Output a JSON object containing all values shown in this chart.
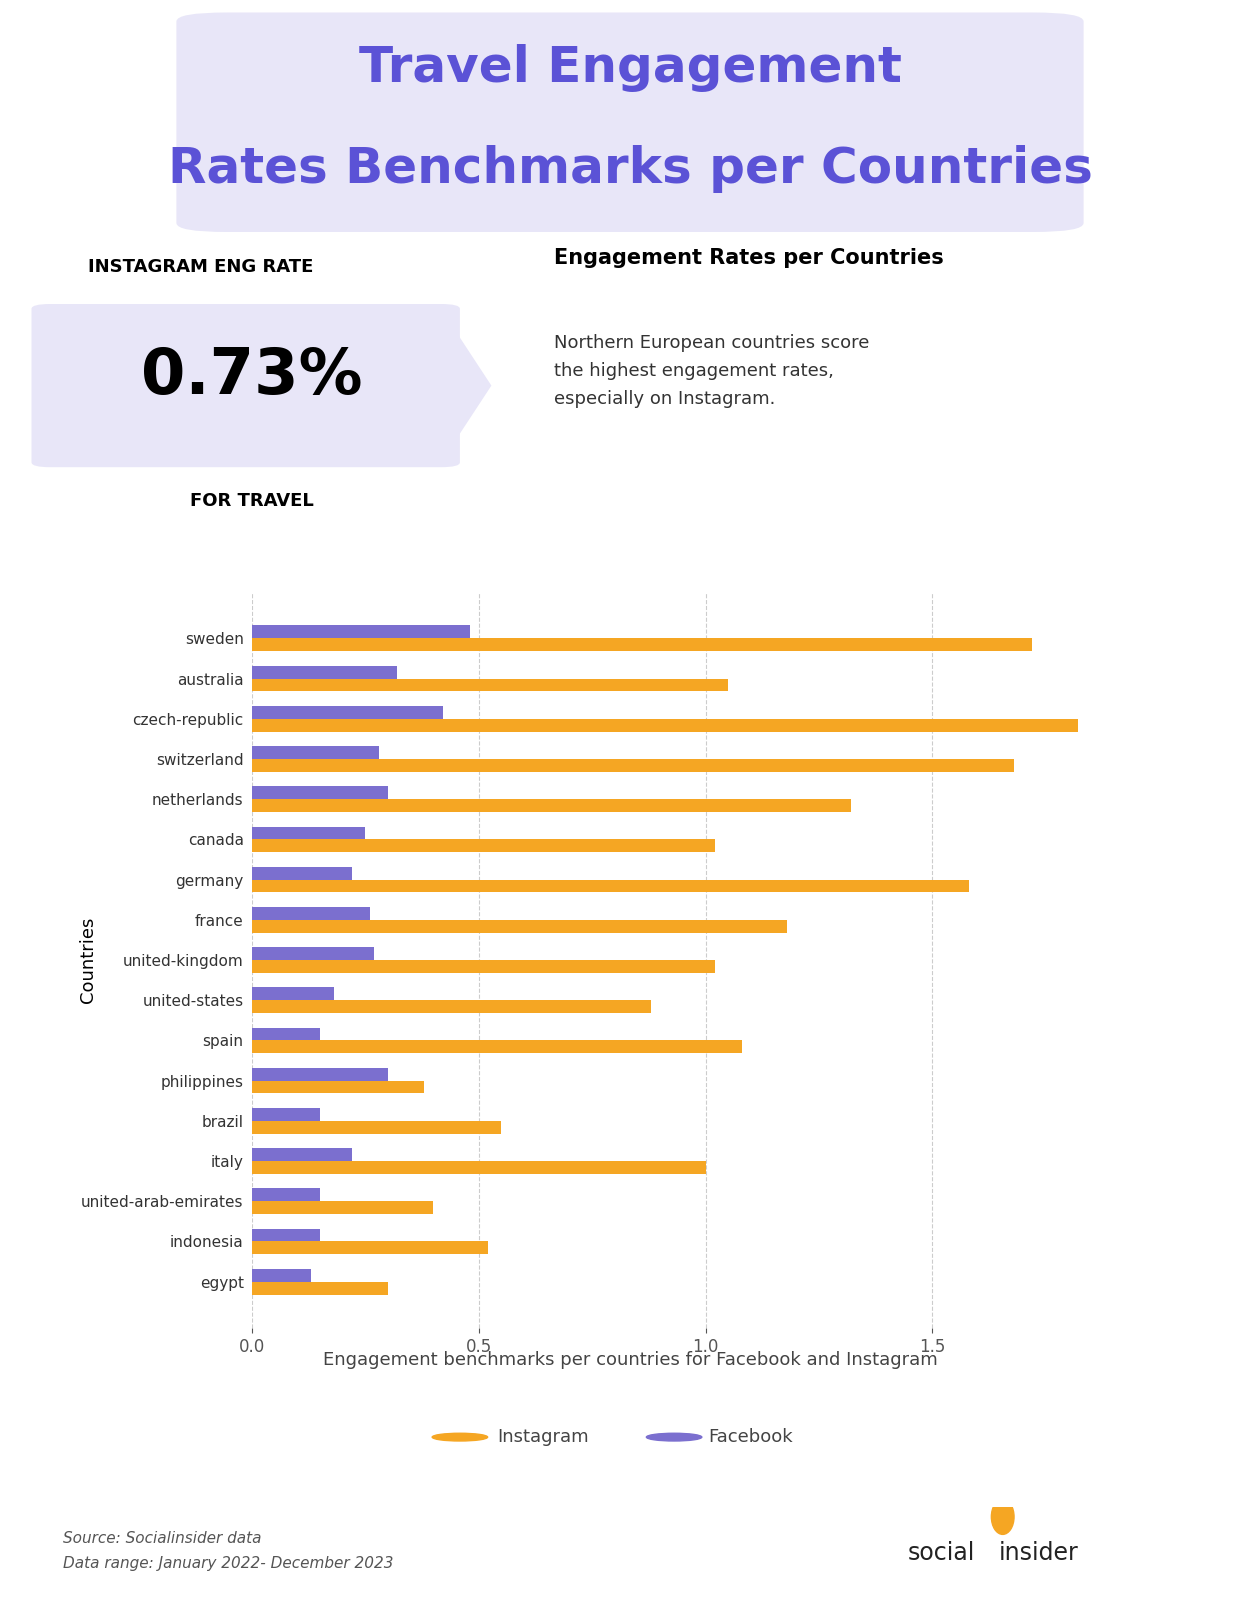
{
  "title_line1": "Travel Engagement",
  "title_line2": "Rates Benchmarks per Countries",
  "title_color": "#5b52d6",
  "title_bg_color": "#e8e6f8",
  "ig_eng_rate_label": "INSTAGRAM ENG RATE",
  "ig_eng_rate_value": "0.73%",
  "ig_eng_rate_sublabel": "FOR TRAVEL",
  "engagement_subtitle": "Engagement Rates per Countries",
  "engagement_desc": "Northern European countries score\nthe highest engagement rates,\nespecially on Instagram.",
  "countries": [
    "sweden",
    "australia",
    "czech-republic",
    "switzerland",
    "netherlands",
    "canada",
    "germany",
    "france",
    "united-kingdom",
    "united-states",
    "spain",
    "philippines",
    "brazil",
    "italy",
    "united-arab-emirates",
    "indonesia",
    "egypt"
  ],
  "instagram_values": [
    1.72,
    1.05,
    1.82,
    1.68,
    1.32,
    1.02,
    1.58,
    1.18,
    1.02,
    0.88,
    1.08,
    0.38,
    0.55,
    1.0,
    0.4,
    0.52,
    0.3
  ],
  "facebook_values": [
    0.48,
    0.32,
    0.42,
    0.28,
    0.3,
    0.25,
    0.22,
    0.26,
    0.27,
    0.18,
    0.15,
    0.3,
    0.15,
    0.22,
    0.15,
    0.15,
    0.13
  ],
  "instagram_color": "#f5a623",
  "facebook_color": "#7b6fcf",
  "bg_color": "#ffffff",
  "chart_note": "Engagement benchmarks per countries for Facebook and Instagram",
  "source_text": "Source: Socialinsider data\nData range: January 2022- December 2023",
  "ylabel_text": "Countries",
  "xlim": [
    0,
    2.0
  ],
  "xticks": [
    0,
    0.5,
    1,
    1.5
  ]
}
